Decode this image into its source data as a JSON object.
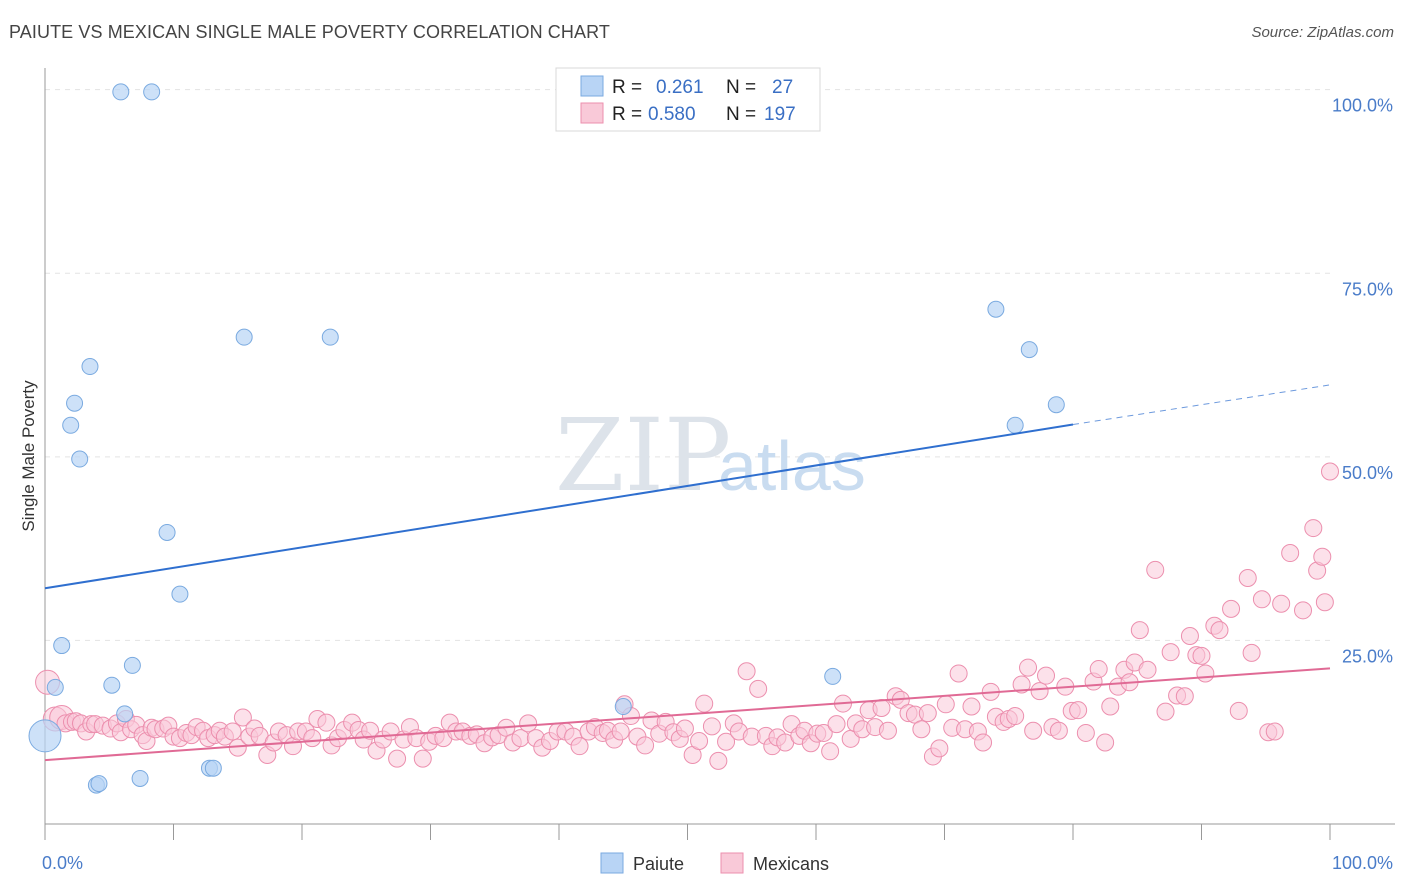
{
  "title": "PAIUTE VS MEXICAN SINGLE MALE POVERTY CORRELATION CHART",
  "source": "Source: ZipAtlas.com",
  "watermark": {
    "zip": "ZIP",
    "atlas": "atlas"
  },
  "colors": {
    "paiute_fill": "#b8d4f5",
    "paiute_stroke": "#7aaae0",
    "paiute_line": "#2f6fcf",
    "mexican_fill": "#f9c9d8",
    "mexican_stroke": "#ec8fae",
    "mexican_line": "#e06a95",
    "tick_label": "#4a7cc9",
    "grid": "#e3e3e3"
  },
  "legend": {
    "r_label": "R =",
    "n_label": "N =",
    "paiute": {
      "r": "0.261",
      "n": "27"
    },
    "mexican": {
      "r": "0.580",
      "n": "197"
    }
  },
  "chart_data": {
    "type": "scatter",
    "title": "PAIUTE VS MEXICAN SINGLE MALE POVERTY CORRELATION CHART",
    "ylabel": "Single Male Poverty",
    "xlabel": "",
    "xlim": [
      0,
      100
    ],
    "ylim": [
      0,
      102
    ],
    "x_tick_labels": {
      "min": "0.0%",
      "max": "100.0%"
    },
    "y_ticks": [
      25,
      50,
      75,
      100
    ],
    "y_tick_labels": [
      "25.0%",
      "50.0%",
      "75.0%",
      "100.0%"
    ],
    "series": [
      {
        "name": "Paiute",
        "r": 0.261,
        "n": 27,
        "trend": {
          "x0": 0,
          "y0": 32.1,
          "x1": 80,
          "y1": 54.4,
          "dash_to_x": 100,
          "dash_to_y": 59.8
        },
        "points": [
          [
            0.0,
            12.0
          ],
          [
            0.8,
            18.6
          ],
          [
            1.3,
            24.3
          ],
          [
            2.0,
            54.3
          ],
          [
            2.3,
            57.3
          ],
          [
            2.7,
            49.7
          ],
          [
            3.5,
            62.3
          ],
          [
            4.0,
            5.3
          ],
          [
            4.2,
            5.5
          ],
          [
            5.2,
            18.9
          ],
          [
            5.9,
            99.7
          ],
          [
            6.2,
            15.0
          ],
          [
            6.8,
            21.6
          ],
          [
            7.4,
            6.2
          ],
          [
            8.3,
            99.7
          ],
          [
            9.5,
            39.7
          ],
          [
            10.5,
            31.3
          ],
          [
            12.8,
            7.6
          ],
          [
            13.1,
            7.6
          ],
          [
            15.5,
            66.3
          ],
          [
            22.2,
            66.3
          ],
          [
            45.0,
            16.0
          ],
          [
            61.3,
            20.1
          ],
          [
            74.0,
            70.1
          ],
          [
            75.5,
            54.3
          ],
          [
            76.6,
            64.6
          ],
          [
            78.7,
            57.1
          ]
        ]
      },
      {
        "name": "Mexicans",
        "r": 0.58,
        "n": 197,
        "trend": {
          "x0": 0,
          "y0": 8.7,
          "x1": 100,
          "y1": 21.2
        },
        "points": [
          [
            0.2,
            19.3
          ],
          [
            0.8,
            14.3
          ],
          [
            1.3,
            14.5
          ],
          [
            1.6,
            13.7
          ],
          [
            2.1,
            13.9
          ],
          [
            2.4,
            14.0
          ],
          [
            2.8,
            13.7
          ],
          [
            3.2,
            12.6
          ],
          [
            3.6,
            13.6
          ],
          [
            3.9,
            13.6
          ],
          [
            4.5,
            13.4
          ],
          [
            5.1,
            13.0
          ],
          [
            5.6,
            13.7
          ],
          [
            5.9,
            12.5
          ],
          [
            6.3,
            14.3
          ],
          [
            6.7,
            12.9
          ],
          [
            7.1,
            13.5
          ],
          [
            7.6,
            12.1
          ],
          [
            7.9,
            11.3
          ],
          [
            8.3,
            13.1
          ],
          [
            8.6,
            12.9
          ],
          [
            9.2,
            13.0
          ],
          [
            9.6,
            13.4
          ],
          [
            10.0,
            11.9
          ],
          [
            10.5,
            11.7
          ],
          [
            11.0,
            12.4
          ],
          [
            11.4,
            12.1
          ],
          [
            11.8,
            13.2
          ],
          [
            12.3,
            12.7
          ],
          [
            12.7,
            11.7
          ],
          [
            13.2,
            12.1
          ],
          [
            13.6,
            12.7
          ],
          [
            14.0,
            11.9
          ],
          [
            14.6,
            12.6
          ],
          [
            15.0,
            10.4
          ],
          [
            15.4,
            14.5
          ],
          [
            15.9,
            11.9
          ],
          [
            16.3,
            13.0
          ],
          [
            16.7,
            12.0
          ],
          [
            17.3,
            9.4
          ],
          [
            17.8,
            11.1
          ],
          [
            18.2,
            12.6
          ],
          [
            18.8,
            12.1
          ],
          [
            19.3,
            10.6
          ],
          [
            19.7,
            12.6
          ],
          [
            20.3,
            12.6
          ],
          [
            20.8,
            11.7
          ],
          [
            21.2,
            14.3
          ],
          [
            21.9,
            13.8
          ],
          [
            22.3,
            10.7
          ],
          [
            22.8,
            11.7
          ],
          [
            23.3,
            12.8
          ],
          [
            23.9,
            13.8
          ],
          [
            24.4,
            12.8
          ],
          [
            24.8,
            11.5
          ],
          [
            25.3,
            12.7
          ],
          [
            25.8,
            10.0
          ],
          [
            26.3,
            11.5
          ],
          [
            26.9,
            12.6
          ],
          [
            27.4,
            8.9
          ],
          [
            27.9,
            11.5
          ],
          [
            28.4,
            13.2
          ],
          [
            28.9,
            11.7
          ],
          [
            29.4,
            8.9
          ],
          [
            29.9,
            11.2
          ],
          [
            30.4,
            12.0
          ],
          [
            31.0,
            11.7
          ],
          [
            31.5,
            13.8
          ],
          [
            32.0,
            12.6
          ],
          [
            32.5,
            12.6
          ],
          [
            33.1,
            12.0
          ],
          [
            33.6,
            12.2
          ],
          [
            34.2,
            11.0
          ],
          [
            34.8,
            11.8
          ],
          [
            35.3,
            12.1
          ],
          [
            35.9,
            13.1
          ],
          [
            36.4,
            11.1
          ],
          [
            37.0,
            11.7
          ],
          [
            37.6,
            13.7
          ],
          [
            38.2,
            11.7
          ],
          [
            38.7,
            10.4
          ],
          [
            39.3,
            11.3
          ],
          [
            39.9,
            12.6
          ],
          [
            40.5,
            12.6
          ],
          [
            41.1,
            11.9
          ],
          [
            41.6,
            10.6
          ],
          [
            42.3,
            12.6
          ],
          [
            42.8,
            13.2
          ],
          [
            43.4,
            12.4
          ],
          [
            43.8,
            12.7
          ],
          [
            44.3,
            11.5
          ],
          [
            44.8,
            12.6
          ],
          [
            45.1,
            16.3
          ],
          [
            45.6,
            14.7
          ],
          [
            46.1,
            11.9
          ],
          [
            46.7,
            10.7
          ],
          [
            47.2,
            14.1
          ],
          [
            47.8,
            12.3
          ],
          [
            48.3,
            13.9
          ],
          [
            48.9,
            12.5
          ],
          [
            49.4,
            11.6
          ],
          [
            49.8,
            13.0
          ],
          [
            50.4,
            9.4
          ],
          [
            50.9,
            11.3
          ],
          [
            51.3,
            16.4
          ],
          [
            51.9,
            13.3
          ],
          [
            52.4,
            8.6
          ],
          [
            53.0,
            11.2
          ],
          [
            53.6,
            13.7
          ],
          [
            54.0,
            12.6
          ],
          [
            54.6,
            20.8
          ],
          [
            55.0,
            11.9
          ],
          [
            55.5,
            18.4
          ],
          [
            56.1,
            12.0
          ],
          [
            56.6,
            10.6
          ],
          [
            57.0,
            11.8
          ],
          [
            57.6,
            11.1
          ],
          [
            58.1,
            13.6
          ],
          [
            58.7,
            12.0
          ],
          [
            59.1,
            12.7
          ],
          [
            59.6,
            11.0
          ],
          [
            60.1,
            12.3
          ],
          [
            60.6,
            12.4
          ],
          [
            61.1,
            9.9
          ],
          [
            61.6,
            13.6
          ],
          [
            62.1,
            16.4
          ],
          [
            62.7,
            11.6
          ],
          [
            63.1,
            13.7
          ],
          [
            63.6,
            12.9
          ],
          [
            64.1,
            15.5
          ],
          [
            64.6,
            13.2
          ],
          [
            65.1,
            15.8
          ],
          [
            65.6,
            12.7
          ],
          [
            66.2,
            17.4
          ],
          [
            66.6,
            16.9
          ],
          [
            67.2,
            15.1
          ],
          [
            67.7,
            14.9
          ],
          [
            68.2,
            12.9
          ],
          [
            68.7,
            15.1
          ],
          [
            69.1,
            9.2
          ],
          [
            69.6,
            10.3
          ],
          [
            70.1,
            16.3
          ],
          [
            70.6,
            13.1
          ],
          [
            71.1,
            20.5
          ],
          [
            71.6,
            12.9
          ],
          [
            72.1,
            16.0
          ],
          [
            72.6,
            12.6
          ],
          [
            73.0,
            11.1
          ],
          [
            73.6,
            18.0
          ],
          [
            74.0,
            14.6
          ],
          [
            74.6,
            13.9
          ],
          [
            75.0,
            14.3
          ],
          [
            75.5,
            14.7
          ],
          [
            76.0,
            19.0
          ],
          [
            76.5,
            21.3
          ],
          [
            76.9,
            12.7
          ],
          [
            77.4,
            18.1
          ],
          [
            77.9,
            20.2
          ],
          [
            78.4,
            13.2
          ],
          [
            78.9,
            12.7
          ],
          [
            79.4,
            18.7
          ],
          [
            79.9,
            15.4
          ],
          [
            80.4,
            15.5
          ],
          [
            81.0,
            12.4
          ],
          [
            81.6,
            19.4
          ],
          [
            82.0,
            21.1
          ],
          [
            82.5,
            11.1
          ],
          [
            82.9,
            16.0
          ],
          [
            83.5,
            18.7
          ],
          [
            84.0,
            21.0
          ],
          [
            84.4,
            19.3
          ],
          [
            84.8,
            22.0
          ],
          [
            85.2,
            26.4
          ],
          [
            85.8,
            21.0
          ],
          [
            86.4,
            34.6
          ],
          [
            87.2,
            15.3
          ],
          [
            87.6,
            23.4
          ],
          [
            88.1,
            17.5
          ],
          [
            88.7,
            17.4
          ],
          [
            89.1,
            25.6
          ],
          [
            89.6,
            23.0
          ],
          [
            90.0,
            22.9
          ],
          [
            90.3,
            20.5
          ],
          [
            91.0,
            27.0
          ],
          [
            91.4,
            26.4
          ],
          [
            92.3,
            29.3
          ],
          [
            92.9,
            15.4
          ],
          [
            93.6,
            33.5
          ],
          [
            93.9,
            23.3
          ],
          [
            94.7,
            30.6
          ],
          [
            95.2,
            12.5
          ],
          [
            95.7,
            12.6
          ],
          [
            96.2,
            30.0
          ],
          [
            96.9,
            36.9
          ],
          [
            97.9,
            29.1
          ],
          [
            98.7,
            40.3
          ],
          [
            99.0,
            34.5
          ],
          [
            99.4,
            36.4
          ],
          [
            99.6,
            30.2
          ],
          [
            100.0,
            48.0
          ]
        ]
      }
    ]
  },
  "bottom_legend": {
    "paiute": "Paiute",
    "mexicans": "Mexicans"
  }
}
